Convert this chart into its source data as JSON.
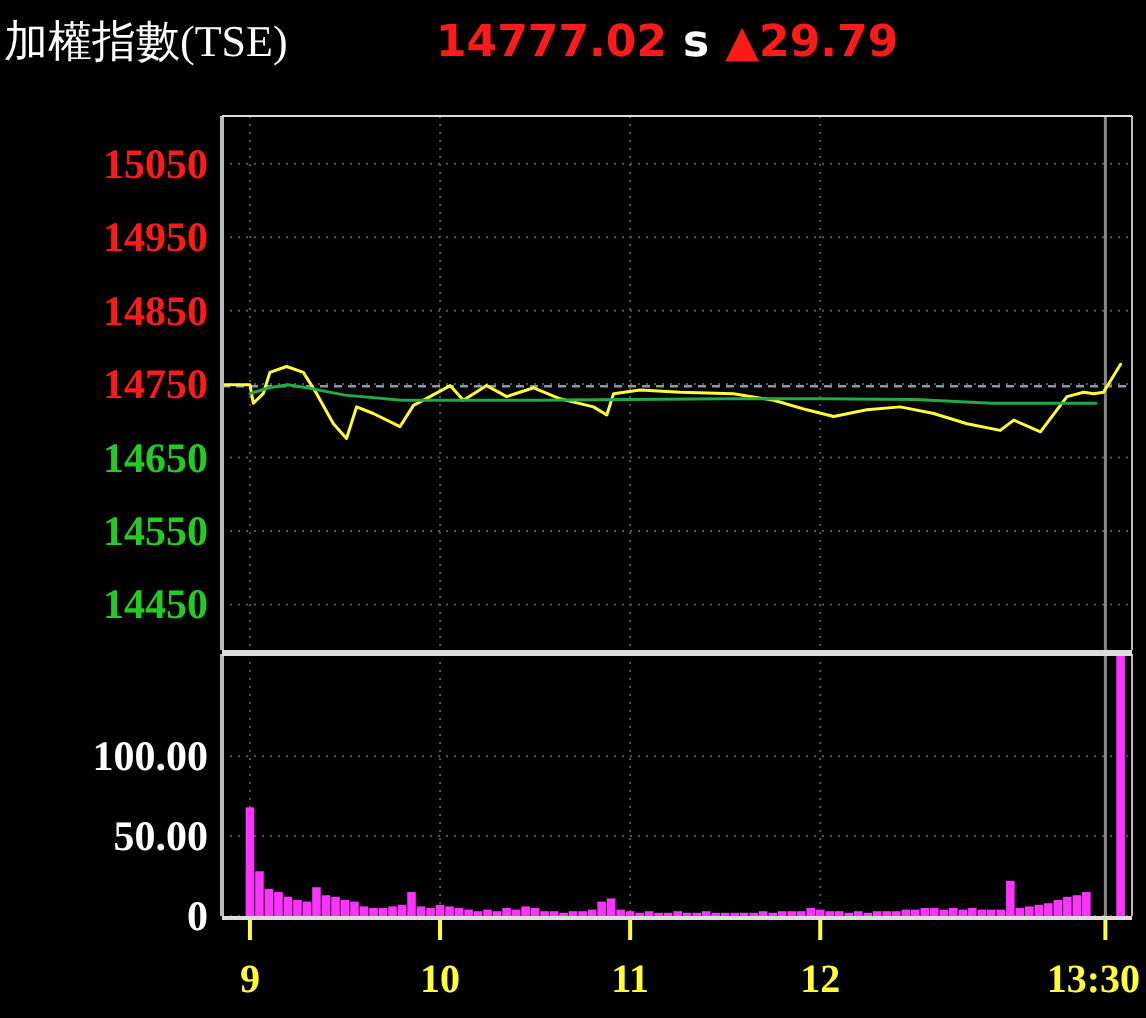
{
  "chart_data": [
    {
      "type": "line",
      "title": "加權指數(TSE)",
      "annotations": [
        "14777.02",
        "s",
        "▲29.79"
      ],
      "series": [
        {
          "color": "#ffff33",
          "x": [
            8.86,
            9.0,
            9.018,
            9.07,
            9.105,
            9.193,
            9.281,
            9.351,
            9.439,
            9.508,
            9.561,
            9.649,
            9.789,
            9.86,
            9.947,
            10.053,
            10.123,
            10.245,
            10.351,
            10.492,
            10.632,
            10.807,
            10.877,
            10.913,
            11.053,
            11.263,
            11.544,
            11.755,
            11.929,
            12.071,
            12.245,
            12.421,
            12.597,
            12.772,
            12.947,
            13.018,
            13.158,
            13.298,
            13.386,
            13.439,
            13.49,
            13.58
          ],
          "values": [
            14749,
            14749,
            14724,
            14737,
            14766,
            14774,
            14766,
            14737,
            14696,
            14676,
            14719,
            14710,
            14692,
            14721,
            14733,
            14748,
            14728,
            14748,
            14733,
            14745,
            14730,
            14719,
            14708,
            14737,
            14742,
            14739,
            14737,
            14728,
            14715,
            14706,
            14715,
            14719,
            14710,
            14696,
            14687,
            14701,
            14685,
            14733,
            14739,
            14737,
            14739,
            14777
          ]
        },
        {
          "color": "#22aa44",
          "x": [
            9.0,
            9.1,
            9.2,
            9.3,
            9.5,
            9.8,
            10.5,
            11.0,
            11.5,
            12.0,
            12.5,
            12.9,
            13.45
          ],
          "values": [
            14737,
            14745,
            14749,
            14745,
            14735,
            14728,
            14728,
            14729,
            14730,
            14730,
            14729,
            14724,
            14724
          ]
        }
      ],
      "ref_lines": [
        {
          "axis": "y",
          "value": 14747,
          "color": "#8899aa",
          "line_style": "dashed"
        },
        {
          "axis": "x",
          "value": 13.5,
          "color": "#888888",
          "line_style": "solid"
        }
      ],
      "xlim": [
        8.853,
        13.64
      ],
      "xticks": [
        9,
        10,
        11,
        12
      ],
      "ylim": [
        14388,
        15115
      ],
      "yticks": [
        14450,
        14550,
        14650,
        14750,
        14850,
        14950,
        15050
      ],
      "grid": true,
      "tick_labels": "y"
    },
    {
      "type": "bar",
      "color": "#ff33ff",
      "x": [
        9.0,
        9.05,
        9.1,
        9.15,
        9.2,
        9.25,
        9.3,
        9.35,
        9.4,
        9.45,
        9.5,
        9.55,
        9.6,
        9.65,
        9.7,
        9.75,
        9.8,
        9.85,
        9.9,
        9.95,
        10.0,
        10.05,
        10.1,
        10.15,
        10.2,
        10.25,
        10.3,
        10.35,
        10.4,
        10.45,
        10.5,
        10.55,
        10.6,
        10.65,
        10.7,
        10.75,
        10.8,
        10.85,
        10.9,
        10.95,
        11.0,
        11.05,
        11.1,
        11.15,
        11.2,
        11.25,
        11.3,
        11.35,
        11.4,
        11.45,
        11.5,
        11.55,
        11.6,
        11.65,
        11.7,
        11.75,
        11.8,
        11.85,
        11.9,
        11.95,
        12.0,
        12.05,
        12.1,
        12.15,
        12.2,
        12.25,
        12.3,
        12.35,
        12.4,
        12.45,
        12.5,
        12.55,
        12.6,
        12.65,
        12.7,
        12.75,
        12.8,
        12.85,
        12.9,
        12.95,
        13.0,
        13.05,
        13.1,
        13.15,
        13.2,
        13.25,
        13.3,
        13.35,
        13.4,
        13.58
      ],
      "values": [
        68,
        28,
        17,
        15,
        12,
        10,
        9,
        18,
        13,
        12,
        10,
        9,
        6,
        5,
        5,
        6,
        7,
        15,
        6,
        5,
        7,
        6,
        5,
        4,
        3,
        4,
        3,
        5,
        4,
        6,
        5,
        3,
        3,
        2,
        3,
        3,
        4,
        9,
        11,
        4,
        3,
        2,
        3,
        2,
        2,
        3,
        2,
        2,
        3,
        2,
        2,
        2,
        2,
        2,
        3,
        2,
        3,
        3,
        3,
        5,
        4,
        3,
        3,
        2,
        3,
        2,
        3,
        3,
        3,
        4,
        4,
        5,
        5,
        4,
        5,
        4,
        5,
        4,
        4,
        4,
        22,
        5,
        6,
        7,
        8,
        10,
        12,
        13,
        15,
        164
      ],
      "xlim": [
        8.853,
        13.64
      ],
      "xticks": [
        9,
        10,
        11,
        12,
        {
          "value": 13.5,
          "label": "13:30"
        }
      ],
      "ref_lines": [
        {
          "axis": "x",
          "value": 13.5,
          "color": "#888888",
          "line_style": "solid"
        }
      ],
      "ylim": [
        0,
        164
      ],
      "yticks": [
        0,
        {
          "value": 50,
          "label": "50.00"
        },
        {
          "value": 100,
          "label": "100.00"
        }
      ],
      "grid": true
    }
  ]
}
